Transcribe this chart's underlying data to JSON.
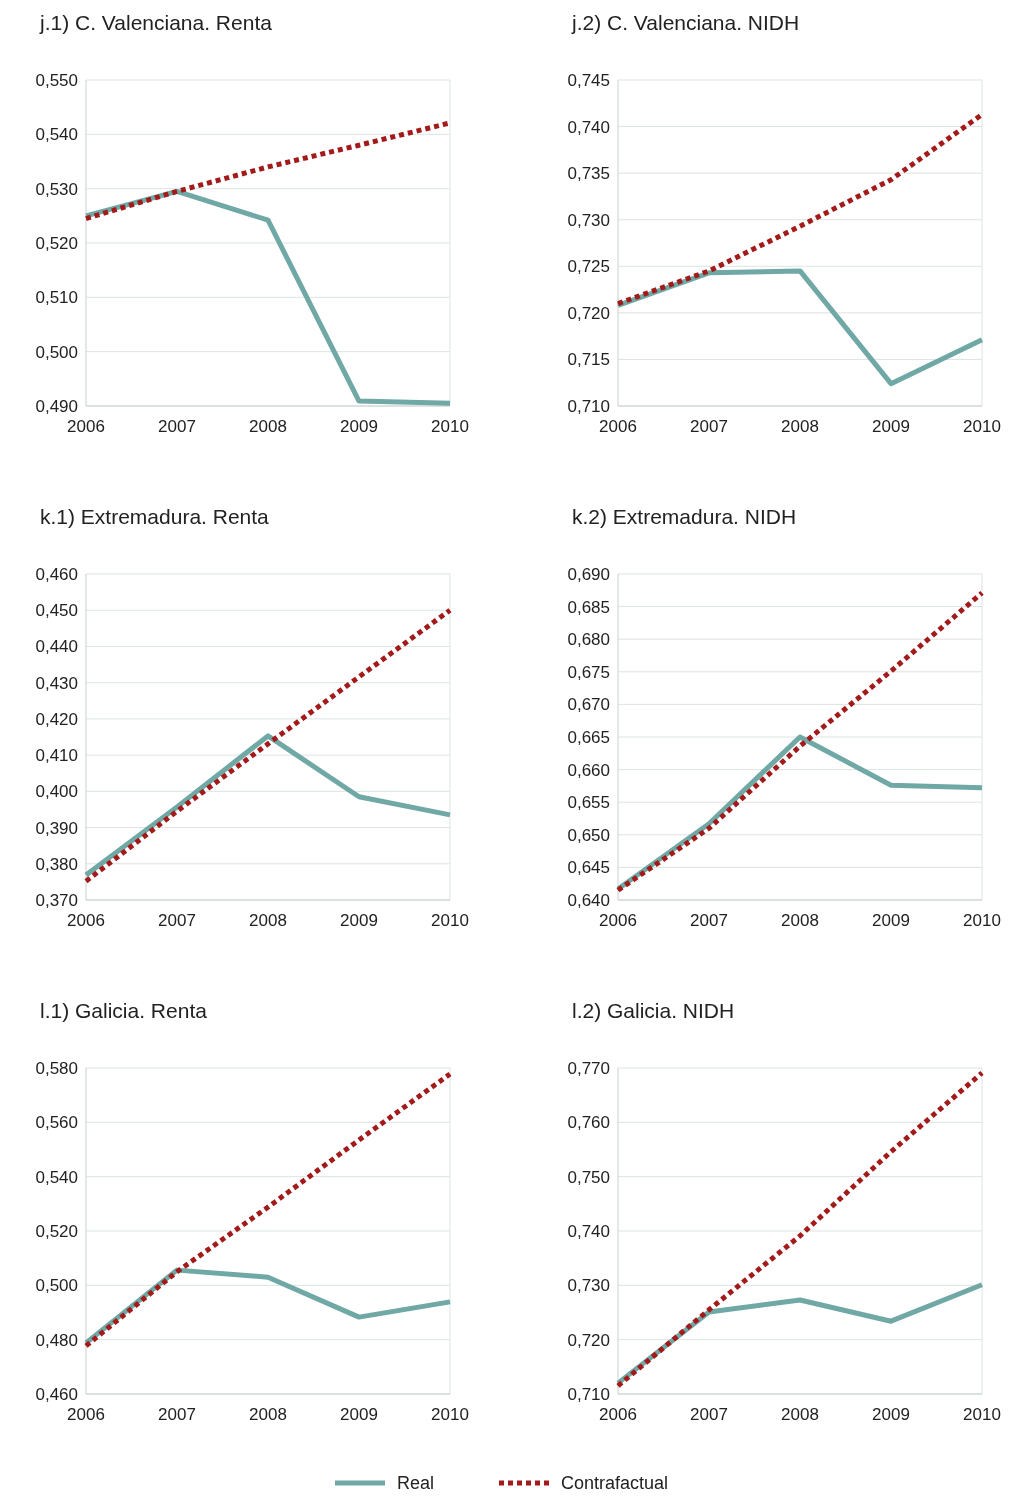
{
  "chart_data": [
    {
      "type": "line",
      "title": "j.1) C. Valenciana. Renta",
      "categories": [
        "2006",
        "2007",
        "2008",
        "2009",
        "2010"
      ],
      "ylim": [
        0.49,
        0.55
      ],
      "yticks": [
        {
          "value": 0.49,
          "label": "0,490"
        },
        {
          "value": 0.5,
          "label": "0,500"
        },
        {
          "value": 0.51,
          "label": "0,510"
        },
        {
          "value": 0.52,
          "label": "0,520"
        },
        {
          "value": 0.53,
          "label": "0,530"
        },
        {
          "value": 0.54,
          "label": "0,540"
        },
        {
          "value": 0.55,
          "label": "0,550"
        }
      ],
      "grid": "y",
      "legend": "bottom",
      "series": [
        {
          "name": "Real",
          "color": "#6fa8a5",
          "line_style": "solid",
          "values": [
            0.525,
            0.5295,
            0.5242,
            0.4909,
            0.4905
          ]
        },
        {
          "name": "Contrafactual",
          "color": "#a31a1a",
          "line_style": "dotted",
          "values": [
            0.5245,
            0.5295,
            0.534,
            0.538,
            0.5421
          ]
        }
      ]
    },
    {
      "type": "line",
      "title": "j.2) C. Valenciana. NIDH",
      "categories": [
        "2006",
        "2007",
        "2008",
        "2009",
        "2010"
      ],
      "ylim": [
        0.71,
        0.745
      ],
      "yticks": [
        {
          "value": 0.71,
          "label": "0,710"
        },
        {
          "value": 0.715,
          "label": "0,715"
        },
        {
          "value": 0.72,
          "label": "0,720"
        },
        {
          "value": 0.725,
          "label": "0,725"
        },
        {
          "value": 0.73,
          "label": "0,730"
        },
        {
          "value": 0.735,
          "label": "0,735"
        },
        {
          "value": 0.74,
          "label": "0,740"
        },
        {
          "value": 0.745,
          "label": "0,745"
        }
      ],
      "grid": "y",
      "legend": false,
      "series": [
        {
          "color": "#6fa8a5",
          "line_style": "solid",
          "values": [
            0.7208,
            0.7243,
            0.7245,
            0.7124,
            0.7171
          ]
        },
        {
          "color": "#a31a1a",
          "line_style": "dotted",
          "values": [
            0.721,
            0.7245,
            0.7293,
            0.7343,
            0.7413
          ]
        }
      ]
    },
    {
      "type": "line",
      "title": "k.1) Extremadura. Renta",
      "categories": [
        "2006",
        "2007",
        "2008",
        "2009",
        "2010"
      ],
      "ylim": [
        0.37,
        0.46
      ],
      "yticks": [
        {
          "value": 0.37,
          "label": "0,370"
        },
        {
          "value": 0.38,
          "label": "0,380"
        },
        {
          "value": 0.39,
          "label": "0,390"
        },
        {
          "value": 0.4,
          "label": "0,400"
        },
        {
          "value": 0.41,
          "label": "0,410"
        },
        {
          "value": 0.42,
          "label": "0,420"
        },
        {
          "value": 0.43,
          "label": "0,430"
        },
        {
          "value": 0.44,
          "label": "0,440"
        },
        {
          "value": 0.45,
          "label": "0,450"
        },
        {
          "value": 0.46,
          "label": "0,460"
        }
      ],
      "grid": "y",
      "legend": false,
      "series": [
        {
          "color": "#6fa8a5",
          "line_style": "solid",
          "values": [
            0.3769,
            0.3957,
            0.4153,
            0.3985,
            0.3935
          ]
        },
        {
          "color": "#a31a1a",
          "line_style": "dotted",
          "values": [
            0.3752,
            0.3945,
            0.4131,
            0.4316,
            0.45
          ]
        }
      ]
    },
    {
      "type": "line",
      "title": "k.2) Extremadura. NIDH",
      "categories": [
        "2006",
        "2007",
        "2008",
        "2009",
        "2010"
      ],
      "ylim": [
        0.64,
        0.69
      ],
      "yticks": [
        {
          "value": 0.64,
          "label": "0,640"
        },
        {
          "value": 0.645,
          "label": "0,645"
        },
        {
          "value": 0.65,
          "label": "0,650"
        },
        {
          "value": 0.655,
          "label": "0,655"
        },
        {
          "value": 0.66,
          "label": "0,660"
        },
        {
          "value": 0.665,
          "label": "0,665"
        },
        {
          "value": 0.67,
          "label": "0,670"
        },
        {
          "value": 0.675,
          "label": "0,675"
        },
        {
          "value": 0.68,
          "label": "0,680"
        },
        {
          "value": 0.685,
          "label": "0,685"
        },
        {
          "value": 0.69,
          "label": "0,690"
        }
      ],
      "grid": "y",
      "legend": false,
      "series": [
        {
          "color": "#6fa8a5",
          "line_style": "solid",
          "values": [
            0.6417,
            0.6517,
            0.665,
            0.6576,
            0.6572
          ]
        },
        {
          "color": "#a31a1a",
          "line_style": "dotted",
          "values": [
            0.6415,
            0.651,
            0.6636,
            0.6751,
            0.6871
          ]
        }
      ]
    },
    {
      "type": "line",
      "title": "l.1) Galicia. Renta",
      "categories": [
        "2006",
        "2007",
        "2008",
        "2009",
        "2010"
      ],
      "ylim": [
        0.46,
        0.58
      ],
      "yticks": [
        {
          "value": 0.46,
          "label": "0,460"
        },
        {
          "value": 0.48,
          "label": "0,480"
        },
        {
          "value": 0.5,
          "label": "0,500"
        },
        {
          "value": 0.52,
          "label": "0,520"
        },
        {
          "value": 0.54,
          "label": "0,540"
        },
        {
          "value": 0.56,
          "label": "0,560"
        },
        {
          "value": 0.58,
          "label": "0,580"
        }
      ],
      "grid": "y",
      "legend": false,
      "series": [
        {
          "color": "#6fa8a5",
          "line_style": "solid",
          "values": [
            0.4788,
            0.5056,
            0.503,
            0.4883,
            0.4939
          ]
        },
        {
          "color": "#a31a1a",
          "line_style": "dotted",
          "values": [
            0.4777,
            0.505,
            0.5288,
            0.5535,
            0.5778
          ]
        }
      ]
    },
    {
      "type": "line",
      "title": "l.2) Galicia. NIDH",
      "categories": [
        "2006",
        "2007",
        "2008",
        "2009",
        "2010"
      ],
      "ylim": [
        0.71,
        0.77
      ],
      "yticks": [
        {
          "value": 0.71,
          "label": "0,710"
        },
        {
          "value": 0.72,
          "label": "0,720"
        },
        {
          "value": 0.73,
          "label": "0,730"
        },
        {
          "value": 0.74,
          "label": "0,740"
        },
        {
          "value": 0.75,
          "label": "0,750"
        },
        {
          "value": 0.76,
          "label": "0,760"
        },
        {
          "value": 0.77,
          "label": "0,770"
        }
      ],
      "grid": "y",
      "legend": false,
      "series": [
        {
          "color": "#6fa8a5",
          "line_style": "solid",
          "values": [
            0.712,
            0.7251,
            0.7273,
            0.7234,
            0.7301
          ]
        },
        {
          "color": "#a31a1a",
          "line_style": "dotted",
          "values": [
            0.7115,
            0.7255,
            0.7391,
            0.7546,
            0.7691
          ]
        }
      ]
    }
  ]
}
